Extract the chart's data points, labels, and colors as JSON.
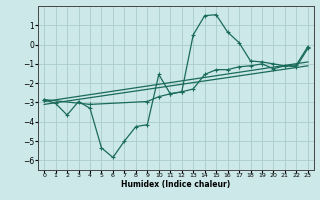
{
  "xlabel": "Humidex (Indice chaleur)",
  "bg_color": "#cce8e8",
  "grid_color": "#aacccc",
  "line_color": "#1a6b5a",
  "xlim": [
    -0.5,
    23.5
  ],
  "ylim": [
    -6.5,
    2.0
  ],
  "xticks": [
    0,
    1,
    2,
    3,
    4,
    5,
    6,
    7,
    8,
    9,
    10,
    11,
    12,
    13,
    14,
    15,
    16,
    17,
    18,
    19,
    20,
    21,
    22,
    23
  ],
  "yticks": [
    -6,
    -5,
    -4,
    -3,
    -2,
    -1,
    0,
    1
  ],
  "series1_x": [
    0,
    1,
    2,
    3,
    4,
    5,
    6,
    7,
    8,
    9,
    10,
    11,
    12,
    13,
    14,
    15,
    16,
    17,
    18,
    19,
    20,
    21,
    22,
    23
  ],
  "series1_y": [
    -2.85,
    -3.05,
    -3.65,
    -2.95,
    -3.3,
    -5.35,
    -5.85,
    -5.0,
    -4.25,
    -4.15,
    -1.55,
    -2.55,
    -2.45,
    0.5,
    1.5,
    1.55,
    0.65,
    0.1,
    -0.85,
    -0.9,
    -1.0,
    -1.1,
    -1.05,
    -0.1
  ],
  "series2_x": [
    0,
    4,
    9,
    10,
    11,
    12,
    13,
    14,
    15,
    16,
    17,
    18,
    19,
    20,
    21,
    22,
    23
  ],
  "series2_y": [
    -2.85,
    -3.1,
    -2.95,
    -2.7,
    -2.55,
    -2.45,
    -2.3,
    -1.55,
    -1.3,
    -1.3,
    -1.15,
    -1.1,
    -1.0,
    -1.25,
    -1.1,
    -1.15,
    -0.2
  ],
  "series3_x": [
    0,
    23
  ],
  "series3_y": [
    -2.95,
    -0.9
  ],
  "series4_x": [
    0,
    23
  ],
  "series4_y": [
    -3.1,
    -1.1
  ]
}
